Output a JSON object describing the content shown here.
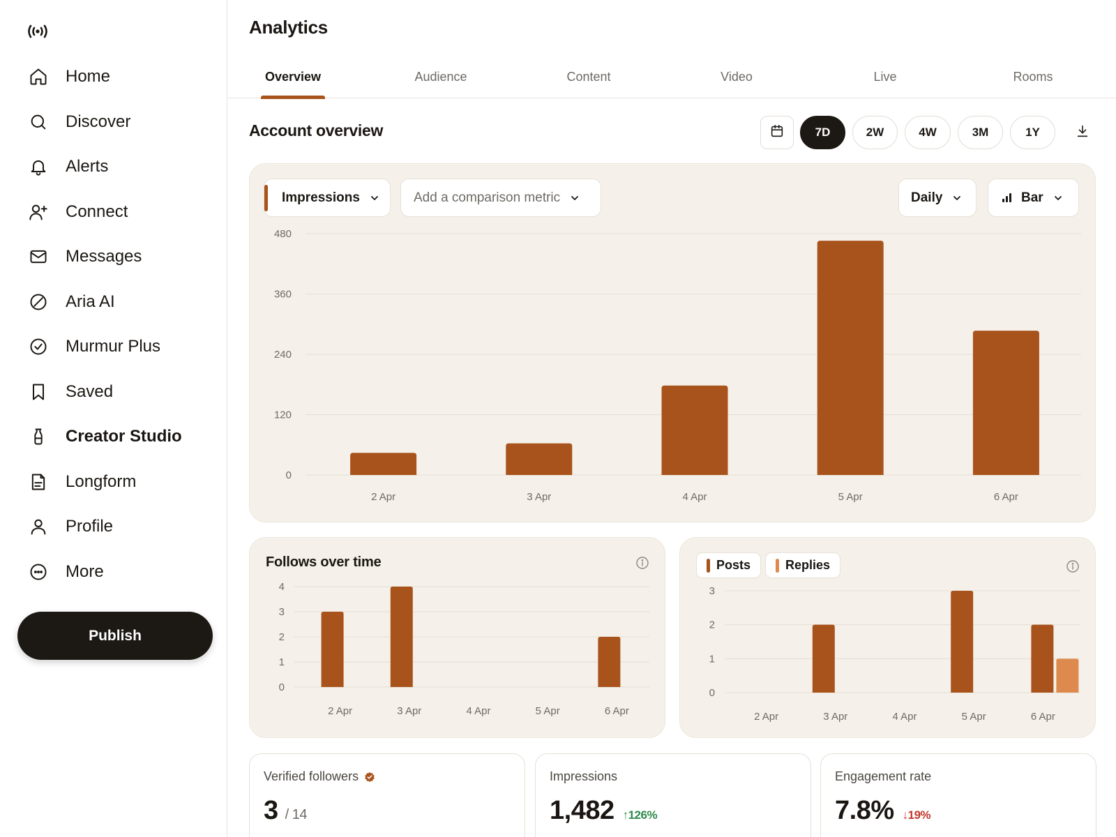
{
  "app": {
    "logo_text": "((•))"
  },
  "sidebar": {
    "items": [
      {
        "label": "Home",
        "icon": "home-icon"
      },
      {
        "label": "Discover",
        "icon": "search-icon"
      },
      {
        "label": "Alerts",
        "icon": "bell-icon"
      },
      {
        "label": "Connect",
        "icon": "person-add-icon"
      },
      {
        "label": "Messages",
        "icon": "envelope-icon"
      },
      {
        "label": "Aria AI",
        "icon": "slash-circle-icon"
      },
      {
        "label": "Murmur Plus",
        "icon": "check-circle-icon"
      },
      {
        "label": "Saved",
        "icon": "bookmark-icon"
      },
      {
        "label": "Creator Studio",
        "icon": "bulb-icon",
        "active": true
      },
      {
        "label": "Longform",
        "icon": "document-icon"
      },
      {
        "label": "Profile",
        "icon": "person-icon"
      },
      {
        "label": "More",
        "icon": "more-circle-icon"
      }
    ],
    "publish_label": "Publish"
  },
  "header": {
    "title": "Analytics"
  },
  "tabs": [
    {
      "label": "Overview",
      "active": true
    },
    {
      "label": "Audience"
    },
    {
      "label": "Content"
    },
    {
      "label": "Video"
    },
    {
      "label": "Live"
    },
    {
      "label": "Rooms"
    }
  ],
  "overview": {
    "title": "Account overview",
    "ranges": [
      "7D",
      "2W",
      "4W",
      "3M",
      "1Y"
    ],
    "active_range": "7D",
    "metric_dropdown": "Impressions",
    "comparison_placeholder": "Add a comparison metric",
    "granularity": "Daily",
    "chart_type_label": "Bar"
  },
  "colors": {
    "accent": "#a9531c",
    "accent_light": "#de8a4e",
    "panel_bg": "#f5f1ea",
    "dark": "#1c1814",
    "up": "#2f8a4c",
    "down": "#c0392b"
  },
  "chart_data": [
    {
      "id": "impressions",
      "type": "bar",
      "categories": [
        "2 Apr",
        "3 Apr",
        "4 Apr",
        "5 Apr",
        "6 Apr"
      ],
      "series": [
        {
          "name": "Impressions",
          "values": [
            44,
            63,
            178,
            466,
            287
          ]
        }
      ],
      "yticks": [
        0,
        120,
        240,
        360,
        480
      ],
      "ylim": [
        0,
        480
      ],
      "grid": true
    },
    {
      "id": "follows",
      "type": "bar",
      "title": "Follows over time",
      "categories": [
        "2 Apr",
        "3 Apr",
        "4 Apr",
        "5 Apr",
        "6 Apr"
      ],
      "series": [
        {
          "name": "",
          "values": [
            3,
            4,
            0,
            0,
            2
          ]
        }
      ],
      "yticks": [
        0,
        1,
        2,
        3,
        4
      ],
      "ylim": [
        0,
        4
      ],
      "grid": true
    },
    {
      "id": "posts_replies",
      "type": "bar",
      "categories": [
        "2 Apr",
        "3 Apr",
        "4 Apr",
        "5 Apr",
        "6 Apr"
      ],
      "series": [
        {
          "name": "Posts",
          "values": [
            0,
            2,
            0,
            3,
            2
          ]
        },
        {
          "name": "Replies",
          "values": [
            0,
            0,
            0,
            0,
            1
          ]
        }
      ],
      "yticks": [
        0,
        1,
        2,
        3
      ],
      "ylim": [
        0,
        3
      ],
      "grid": true
    }
  ],
  "stats": [
    {
      "label": "Verified followers",
      "value": "3",
      "sub": "/ 14",
      "verified_icon": "verified-badge-icon"
    },
    {
      "label": "Impressions",
      "value": "1,482",
      "delta": "↑126%",
      "delta_dir": "up"
    },
    {
      "label": "Engagement rate",
      "value": "7.8%",
      "delta": "↓19%",
      "delta_dir": "down"
    }
  ]
}
